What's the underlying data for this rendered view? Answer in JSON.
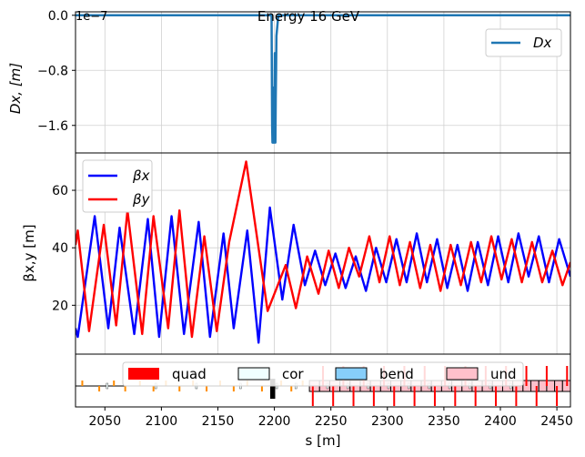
{
  "chart_data": [
    {
      "type": "line",
      "title": "Energy 16 GeV",
      "ylabel": "Dx, [m]",
      "exponent_label": "1e−7",
      "ylim": [
        -2e-07,
        5e-09
      ],
      "xlim": [
        2024,
        2462
      ],
      "yticks": [
        0.0,
        -8e-08,
        -1.6e-07
      ],
      "ytick_labels": [
        "0.0",
        "−0.8",
        "−1.6"
      ],
      "grid": true,
      "legend": {
        "position": "top-right",
        "entries": [
          "Dx"
        ]
      },
      "series": [
        {
          "name": "Dx",
          "color": "#1f77b4",
          "x": [
            2024,
            2197.5,
            2198.0,
            2198.3,
            2199.2,
            2199.5,
            2199.7,
            2199.9,
            2200.4,
            2200.6,
            2200.9,
            2201.2,
            2201.5,
            2201.8,
            2203.5,
            2462
          ],
          "y": [
            0.0,
            0.0,
            -1.6e-07,
            -1.85e-07,
            -1.85e-07,
            -1.05e-07,
            -1.85e-07,
            -1.85e-07,
            -5.5e-08,
            -1.85e-07,
            -1.85e-07,
            -1.2e-07,
            -8e-08,
            -3e-08,
            0.0,
            0.0
          ]
        }
      ]
    },
    {
      "type": "line",
      "ylabel": "βx,y [m]",
      "ylim": [
        3,
        73
      ],
      "xlim": [
        2024,
        2462
      ],
      "yticks": [
        20,
        40,
        60
      ],
      "grid": true,
      "legend": {
        "position": "top-left",
        "entries": [
          "βx",
          "βy"
        ]
      },
      "series": [
        {
          "name": "βx",
          "color": "#0000ff",
          "x": [
            2024,
            2026,
            2041,
            2053,
            2063,
            2076,
            2088,
            2098,
            2109,
            2120,
            2133,
            2143,
            2155,
            2164,
            2176,
            2186,
            2196,
            2207,
            2217,
            2227,
            2236,
            2245,
            2254,
            2263,
            2272,
            2281,
            2290,
            2299,
            2308,
            2317,
            2326,
            2335,
            2344,
            2353,
            2362,
            2371,
            2380,
            2389,
            2398,
            2407,
            2416,
            2425,
            2434,
            2443,
            2452,
            2462
          ],
          "y": [
            12,
            9,
            51,
            12,
            47,
            10,
            50,
            9,
            51,
            10,
            49,
            9,
            45,
            12,
            46,
            7,
            54,
            22,
            48,
            27,
            39,
            27,
            38,
            26,
            37,
            25,
            40,
            28,
            43,
            28,
            45,
            28,
            43,
            26,
            41,
            25,
            42,
            27,
            44,
            28,
            45,
            30,
            44,
            28,
            43,
            30
          ]
        },
        {
          "name": "βy",
          "color": "#ff0000",
          "x": [
            2024,
            2026,
            2036,
            2049,
            2060,
            2070,
            2083,
            2093,
            2106,
            2116,
            2127,
            2138,
            2149,
            2160,
            2175,
            2194,
            2210,
            2219,
            2229,
            2239,
            2248,
            2257,
            2266,
            2275,
            2284,
            2293,
            2302,
            2311,
            2320,
            2329,
            2338,
            2347,
            2356,
            2365,
            2374,
            2383,
            2392,
            2401,
            2410,
            2419,
            2428,
            2437,
            2446,
            2455,
            2462
          ],
          "y": [
            41,
            46,
            11,
            48,
            13,
            53,
            10,
            51,
            12,
            53,
            9,
            44,
            11,
            42,
            70,
            18,
            34,
            19,
            37,
            24,
            39,
            26,
            40,
            30,
            44,
            28,
            44,
            27,
            42,
            26,
            41,
            25,
            41,
            27,
            42,
            28,
            44,
            29,
            43,
            28,
            42,
            28,
            39,
            27,
            35
          ]
        }
      ]
    },
    {
      "type": "lattice",
      "xlabel": "s [m]",
      "xlim": [
        2024,
        2462
      ],
      "xticks": [
        2050,
        2100,
        2150,
        2200,
        2250,
        2300,
        2350,
        2400,
        2450
      ],
      "legend": {
        "position": "top-center",
        "entries": [
          {
            "label": "quad",
            "color": "#ff0000"
          },
          {
            "label": "cor",
            "color": "#f0ffff"
          },
          {
            "label": "bend",
            "color": "#87cefa"
          },
          {
            "label": "und",
            "color": "#ffc0cb"
          }
        ]
      },
      "quadrupoles": [
        2030,
        2045,
        2058,
        2068,
        2081,
        2093,
        2104,
        2116,
        2128,
        2140,
        2152,
        2164,
        2176,
        2189,
        2206,
        2215,
        2225,
        2234,
        2243,
        2252,
        2261,
        2270,
        2279,
        2288,
        2297,
        2306,
        2315,
        2324,
        2333,
        2342,
        2351,
        2360,
        2369,
        2378,
        2387,
        2396,
        2405,
        2414,
        2423,
        2432,
        2441,
        2450,
        2459
      ],
      "correctors": [
        2052,
        2095,
        2131,
        2170,
        2202,
        2219,
        2247,
        2265,
        2283,
        2301,
        2319,
        2337,
        2355,
        2373,
        2391,
        2409
      ],
      "bends": [
        2197.5,
        2199.5
      ],
      "undulators": [
        [
          2231,
          2240
        ],
        [
          2240,
          2249
        ],
        [
          2249,
          2258
        ],
        [
          2258,
          2267
        ],
        [
          2267,
          2276
        ],
        [
          2276,
          2285
        ],
        [
          2285,
          2294
        ],
        [
          2294,
          2303
        ],
        [
          2303,
          2312
        ],
        [
          2312,
          2321
        ],
        [
          2321,
          2330
        ],
        [
          2330,
          2339
        ],
        [
          2339,
          2348
        ],
        [
          2348,
          2357
        ],
        [
          2357,
          2366
        ],
        [
          2366,
          2375
        ],
        [
          2375,
          2384
        ],
        [
          2384,
          2393
        ],
        [
          2393,
          2402
        ],
        [
          2402,
          2411
        ],
        [
          2411,
          2420
        ],
        [
          2420,
          2427
        ],
        [
          2427,
          2434
        ],
        [
          2434,
          2441
        ],
        [
          2441,
          2448
        ],
        [
          2448,
          2455
        ],
        [
          2455,
          2462
        ]
      ]
    }
  ]
}
